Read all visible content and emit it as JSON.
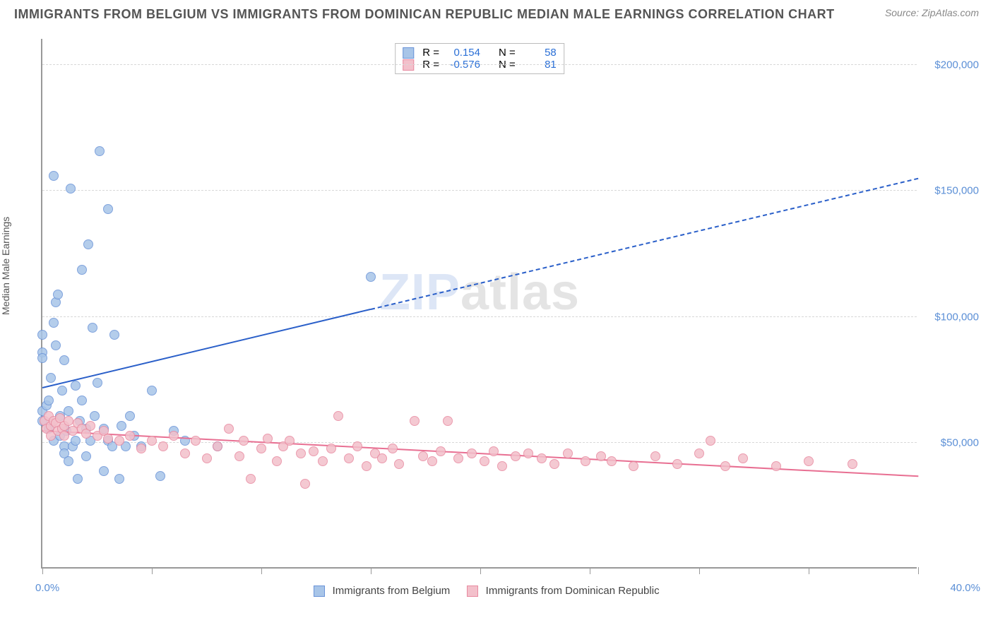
{
  "header": {
    "title": "IMMIGRANTS FROM BELGIUM VS IMMIGRANTS FROM DOMINICAN REPUBLIC MEDIAN MALE EARNINGS CORRELATION CHART",
    "source_prefix": "Source: ",
    "source_name": "ZipAtlas.com"
  },
  "watermark": {
    "left": "ZIP",
    "right": "atlas"
  },
  "chart": {
    "type": "scatter",
    "ylabel": "Median Male Earnings",
    "xmin": 0.0,
    "xmax": 40.0,
    "ymin": 0,
    "ymax": 210000,
    "x_label_min": "0.0%",
    "x_label_max": "40.0%",
    "y_ticks": [
      50000,
      100000,
      150000,
      200000
    ],
    "y_tick_labels": [
      "$50,000",
      "$100,000",
      "$150,000",
      "$200,000"
    ],
    "x_tick_positions": [
      0,
      5,
      10,
      15,
      20,
      25,
      30,
      35,
      40
    ],
    "grid_color": "#d8d8d8",
    "axis_color": "#999999",
    "tick_label_color": "#5b8fd6",
    "background_color": "#ffffff",
    "series": [
      {
        "name": "Immigrants from Belgium",
        "fill": "#a8c5e8",
        "stroke": "#6a93d8",
        "r_label": "R =",
        "r_value": "0.154",
        "n_label": "N =",
        "n_value": "58",
        "trend": {
          "color": "#2a5fc9",
          "x1": 0.0,
          "y1": 72000,
          "x2": 40.0,
          "y2": 155000,
          "solid_until_x": 15.0
        },
        "points": [
          [
            0.0,
            92000
          ],
          [
            0.0,
            85000
          ],
          [
            0.0,
            83000
          ],
          [
            0.0,
            62000
          ],
          [
            0.0,
            58000
          ],
          [
            0.2,
            64000
          ],
          [
            0.3,
            55000
          ],
          [
            0.3,
            66000
          ],
          [
            0.4,
            75000
          ],
          [
            0.5,
            155000
          ],
          [
            0.5,
            97000
          ],
          [
            0.5,
            50000
          ],
          [
            0.6,
            105000
          ],
          [
            0.6,
            88000
          ],
          [
            0.7,
            108000
          ],
          [
            0.8,
            60000
          ],
          [
            0.8,
            52000
          ],
          [
            0.9,
            70000
          ],
          [
            1.0,
            48000
          ],
          [
            1.0,
            82000
          ],
          [
            1.0,
            45000
          ],
          [
            1.1,
            54000
          ],
          [
            1.2,
            42000
          ],
          [
            1.2,
            62000
          ],
          [
            1.3,
            150000
          ],
          [
            1.4,
            48000
          ],
          [
            1.5,
            72000
          ],
          [
            1.5,
            50000
          ],
          [
            1.6,
            35000
          ],
          [
            1.7,
            58000
          ],
          [
            1.8,
            118000
          ],
          [
            1.8,
            66000
          ],
          [
            2.0,
            44000
          ],
          [
            2.0,
            55000
          ],
          [
            2.1,
            128000
          ],
          [
            2.2,
            50000
          ],
          [
            2.3,
            95000
          ],
          [
            2.4,
            60000
          ],
          [
            2.5,
            73000
          ],
          [
            2.6,
            165000
          ],
          [
            2.8,
            38000
          ],
          [
            2.8,
            55000
          ],
          [
            3.0,
            142000
          ],
          [
            3.0,
            50000
          ],
          [
            3.2,
            48000
          ],
          [
            3.3,
            92000
          ],
          [
            3.5,
            35000
          ],
          [
            3.6,
            56000
          ],
          [
            3.8,
            48000
          ],
          [
            4.0,
            60000
          ],
          [
            4.2,
            52000
          ],
          [
            4.5,
            48000
          ],
          [
            5.0,
            70000
          ],
          [
            5.4,
            36000
          ],
          [
            6.0,
            54000
          ],
          [
            6.5,
            50000
          ],
          [
            8.0,
            48000
          ],
          [
            15.0,
            115000
          ]
        ]
      },
      {
        "name": "Immigrants from Dominican Republic",
        "fill": "#f3c0cb",
        "stroke": "#e88aa0",
        "r_label": "R =",
        "r_value": "-0.576",
        "n_label": "N =",
        "n_value": "81",
        "trend": {
          "color": "#e86f92",
          "x1": 0.0,
          "y1": 55000,
          "x2": 40.0,
          "y2": 37000,
          "solid_until_x": 40.0
        },
        "points": [
          [
            0.1,
            58000
          ],
          [
            0.2,
            55000
          ],
          [
            0.3,
            60000
          ],
          [
            0.4,
            56000
          ],
          [
            0.4,
            52000
          ],
          [
            0.5,
            58000
          ],
          [
            0.6,
            57000
          ],
          [
            0.7,
            54000
          ],
          [
            0.8,
            59000
          ],
          [
            0.9,
            55000
          ],
          [
            1.0,
            56000
          ],
          [
            1.0,
            52000
          ],
          [
            1.2,
            58000
          ],
          [
            1.4,
            54000
          ],
          [
            1.6,
            57000
          ],
          [
            1.8,
            55000
          ],
          [
            2.0,
            53000
          ],
          [
            2.2,
            56000
          ],
          [
            2.5,
            52000
          ],
          [
            2.8,
            54000
          ],
          [
            3.0,
            51000
          ],
          [
            3.5,
            50000
          ],
          [
            4.0,
            52000
          ],
          [
            4.5,
            47000
          ],
          [
            5.0,
            50000
          ],
          [
            5.5,
            48000
          ],
          [
            6.0,
            52000
          ],
          [
            6.5,
            45000
          ],
          [
            7.0,
            50000
          ],
          [
            7.5,
            43000
          ],
          [
            8.0,
            48000
          ],
          [
            8.5,
            55000
          ],
          [
            9.0,
            44000
          ],
          [
            9.2,
            50000
          ],
          [
            9.5,
            35000
          ],
          [
            10.0,
            47000
          ],
          [
            10.3,
            51000
          ],
          [
            10.7,
            42000
          ],
          [
            11.0,
            48000
          ],
          [
            11.3,
            50000
          ],
          [
            11.8,
            45000
          ],
          [
            12.0,
            33000
          ],
          [
            12.4,
            46000
          ],
          [
            12.8,
            42000
          ],
          [
            13.2,
            47000
          ],
          [
            13.5,
            60000
          ],
          [
            14.0,
            43000
          ],
          [
            14.4,
            48000
          ],
          [
            14.8,
            40000
          ],
          [
            15.2,
            45000
          ],
          [
            15.5,
            43000
          ],
          [
            16.0,
            47000
          ],
          [
            16.3,
            41000
          ],
          [
            17.0,
            58000
          ],
          [
            17.4,
            44000
          ],
          [
            17.8,
            42000
          ],
          [
            18.2,
            46000
          ],
          [
            18.5,
            58000
          ],
          [
            19.0,
            43000
          ],
          [
            19.6,
            45000
          ],
          [
            20.2,
            42000
          ],
          [
            20.6,
            46000
          ],
          [
            21.0,
            40000
          ],
          [
            21.6,
            44000
          ],
          [
            22.2,
            45000
          ],
          [
            22.8,
            43000
          ],
          [
            23.4,
            41000
          ],
          [
            24.0,
            45000
          ],
          [
            24.8,
            42000
          ],
          [
            25.5,
            44000
          ],
          [
            26.0,
            42000
          ],
          [
            27.0,
            40000
          ],
          [
            28.0,
            44000
          ],
          [
            29.0,
            41000
          ],
          [
            30.0,
            45000
          ],
          [
            30.5,
            50000
          ],
          [
            31.2,
            40000
          ],
          [
            32.0,
            43000
          ],
          [
            33.5,
            40000
          ],
          [
            35.0,
            42000
          ],
          [
            37.0,
            41000
          ]
        ]
      }
    ],
    "bottom_legend": [
      {
        "label": "Immigrants from Belgium",
        "fill": "#a8c5e8",
        "stroke": "#6a93d8"
      },
      {
        "label": "Immigrants from Dominican Republic",
        "fill": "#f3c0cb",
        "stroke": "#e88aa0"
      }
    ]
  }
}
